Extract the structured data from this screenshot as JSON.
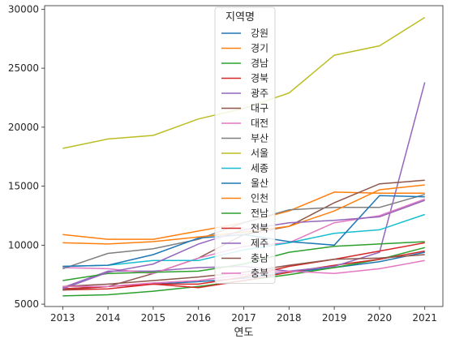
{
  "chart_data": {
    "type": "line",
    "xlabel": "연도",
    "ylabel": "",
    "xlim": [
      2012.6,
      2021.4
    ],
    "ylim": [
      4800,
      30300
    ],
    "xticks": [
      "2013",
      "2014",
      "2015",
      "2016",
      "2017",
      "2018",
      "2019",
      "2020",
      "2021"
    ],
    "yticks": [
      "5000",
      "10000",
      "15000",
      "20000",
      "25000",
      "30000"
    ],
    "grid": false,
    "legend": {
      "title": "지역명",
      "placement": "top-center"
    },
    "x": [
      2013,
      2014,
      2015,
      2016,
      2017,
      2018,
      2019,
      2020,
      2021
    ],
    "series": [
      {
        "name": "강원",
        "color": "#1f77b4",
        "values": [
          6300,
          6500,
          6700,
          6900,
          7200,
          7700,
          8100,
          8600,
          9400
        ]
      },
      {
        "name": "경기",
        "color": "#ff7f0e",
        "values": [
          10900,
          10500,
          10500,
          11200,
          11900,
          12900,
          14500,
          14400,
          14400
        ]
      },
      {
        "name": "경남",
        "color": "#2ca02c",
        "values": [
          5700,
          5800,
          6100,
          6500,
          7000,
          7500,
          8100,
          8800,
          9800
        ]
      },
      {
        "name": "경북",
        "color": "#d62728",
        "values": [
          6200,
          6300,
          6700,
          6400,
          7000,
          7700,
          8300,
          8800,
          9500
        ]
      },
      {
        "name": "광주",
        "color": "#9467bd",
        "values": [
          6400,
          7800,
          7800,
          8100,
          8200,
          7800,
          8200,
          9400,
          23800
        ]
      },
      {
        "name": "대구",
        "color": "#8c564b",
        "values": [
          6200,
          6500,
          7600,
          8900,
          10900,
          11600,
          13600,
          15200,
          15500
        ]
      },
      {
        "name": "대전",
        "color": "#e377c2",
        "values": [
          8100,
          8000,
          7600,
          8900,
          9900,
          10200,
          11900,
          12500,
          13900
        ]
      },
      {
        "name": "부산",
        "color": "#7f7f7f",
        "values": [
          8000,
          9300,
          9700,
          10500,
          11900,
          13000,
          13200,
          13200,
          14300
        ]
      },
      {
        "name": "서울",
        "color": "#bcbd22",
        "values": [
          18200,
          19000,
          19300,
          20700,
          21600,
          22900,
          26100,
          26900,
          29300
        ]
      },
      {
        "name": "세종",
        "color": "#17becf",
        "values": [
          8200,
          8300,
          8700,
          8700,
          9600,
          10200,
          11000,
          11300,
          12600
        ]
      },
      {
        "name": "울산",
        "color": "#1f77b4",
        "values": [
          8200,
          8300,
          9200,
          10600,
          10900,
          10300,
          10000,
          14200,
          14100
        ]
      },
      {
        "name": "인천",
        "color": "#ff7f0e",
        "values": [
          10200,
          10100,
          10300,
          10700,
          11100,
          11600,
          12900,
          14700,
          15100
        ]
      },
      {
        "name": "전남",
        "color": "#2ca02c",
        "values": [
          7000,
          7600,
          7700,
          7800,
          8400,
          9400,
          9900,
          10100,
          10300
        ]
      },
      {
        "name": "전북",
        "color": "#d62728",
        "values": [
          6300,
          6500,
          6700,
          6700,
          7300,
          8200,
          8800,
          9500,
          10200
        ]
      },
      {
        "name": "제주",
        "color": "#9467bd",
        "values": [
          6300,
          7700,
          8400,
          10100,
          11300,
          11900,
          12100,
          12400,
          13800
        ]
      },
      {
        "name": "충남",
        "color": "#8c564b",
        "values": [
          6500,
          6700,
          7000,
          7300,
          7700,
          8300,
          8800,
          8900,
          9200
        ]
      },
      {
        "name": "충북",
        "color": "#e377c2",
        "values": [
          6500,
          6500,
          6800,
          7000,
          7500,
          7800,
          7600,
          8000,
          8700
        ]
      }
    ]
  }
}
